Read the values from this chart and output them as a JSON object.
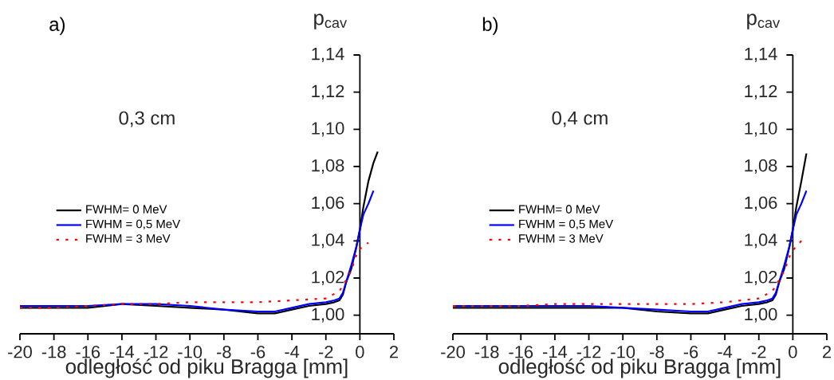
{
  "chart_data": [
    {
      "type": "line",
      "title": "a)",
      "ylabel": "p$_{cav}$",
      "xlabel": "odległość od piku Bragga [mm]",
      "annotations": [
        "0,3 cm"
      ],
      "legend": "left",
      "grid": false,
      "xlim": [
        -20,
        2
      ],
      "xticks": [
        -20,
        -18,
        -16,
        -14,
        -12,
        -10,
        -8,
        -6,
        -4,
        -2,
        0,
        2
      ],
      "ylim": [
        0.99,
        1.14
      ],
      "yticks": [
        {
          "value": 1.0,
          "label": "1,00"
        },
        {
          "value": 1.02,
          "label": "1,02"
        },
        {
          "value": 1.04,
          "label": "1,04"
        },
        {
          "value": 1.06,
          "label": "1,06"
        },
        {
          "value": 1.08,
          "label": "1,08"
        },
        {
          "value": 1.1,
          "label": "1,10"
        },
        {
          "value": 1.12,
          "label": "1,12"
        },
        {
          "value": 1.14,
          "label": "1,14"
        }
      ],
      "series": [
        {
          "name": "FWHM= 0 MeV",
          "color": "#000000",
          "line_style": "solid",
          "x": [
            -20,
            -18,
            -16,
            -14,
            -12,
            -10,
            -8,
            -6,
            -5,
            -4,
            -3,
            -2,
            -1.5,
            -1.2,
            -1,
            -0.8,
            -0.5,
            -0.2,
            0,
            0.2,
            0.5,
            0.8,
            1.05
          ],
          "values": [
            1.004,
            1.004,
            1.004,
            1.006,
            1.005,
            1.004,
            1.003,
            1.001,
            1.001,
            1.003,
            1.005,
            1.006,
            1.007,
            1.008,
            1.011,
            1.018,
            1.025,
            1.037,
            1.046,
            1.058,
            1.072,
            1.082,
            1.088
          ]
        },
        {
          "name": "FWHM = 0,5 MeV",
          "color": "#0000ff",
          "line_style": "solid",
          "x": [
            -20,
            -18,
            -16,
            -14,
            -12,
            -10,
            -8,
            -6,
            -5,
            -4,
            -3,
            -2,
            -1.5,
            -1.2,
            -1,
            -0.8,
            -0.5,
            -0.2,
            0,
            0.2,
            0.5,
            0.8
          ],
          "values": [
            1.005,
            1.005,
            1.005,
            1.006,
            1.006,
            1.005,
            1.003,
            1.002,
            1.002,
            1.004,
            1.006,
            1.007,
            1.008,
            1.009,
            1.012,
            1.018,
            1.027,
            1.037,
            1.046,
            1.054,
            1.06,
            1.067
          ]
        },
        {
          "name": "FWHM = 3 MeV",
          "color": "#ff0000",
          "line_style": "dotted",
          "x": [
            -20,
            -18,
            -16,
            -14,
            -12,
            -10,
            -8,
            -6,
            -4,
            -2,
            -1.2,
            -0.8,
            -0.5,
            -0.3,
            -0.1,
            0.5
          ],
          "values": [
            1.004,
            1.004,
            1.005,
            1.006,
            1.006,
            1.007,
            1.007,
            1.007,
            1.008,
            1.009,
            1.013,
            1.019,
            1.024,
            1.03,
            1.035,
            1.039
          ]
        }
      ]
    },
    {
      "type": "line",
      "title": "b)",
      "ylabel": "p$_{cav}$",
      "xlabel": "odległość od piku Bragga [mm]",
      "annotations": [
        "0,4 cm"
      ],
      "legend": "left",
      "grid": false,
      "xlim": [
        -20,
        2
      ],
      "xticks": [
        -20,
        -18,
        -16,
        -14,
        -12,
        -10,
        -8,
        -6,
        -4,
        -2,
        0,
        2
      ],
      "ylim": [
        0.99,
        1.14
      ],
      "yticks": [
        {
          "value": 1.0,
          "label": "1,00"
        },
        {
          "value": 1.02,
          "label": "1,02"
        },
        {
          "value": 1.04,
          "label": "1,04"
        },
        {
          "value": 1.06,
          "label": "1,06"
        },
        {
          "value": 1.08,
          "label": "1,08"
        },
        {
          "value": 1.1,
          "label": "1,10"
        },
        {
          "value": 1.12,
          "label": "1,12"
        },
        {
          "value": 1.14,
          "label": "1,14"
        }
      ],
      "series": [
        {
          "name": "FWHM= 0 MeV",
          "color": "#000000",
          "line_style": "solid",
          "x": [
            -20,
            -18,
            -16,
            -14,
            -12,
            -10,
            -8,
            -6,
            -5,
            -4,
            -3,
            -2,
            -1.5,
            -1.2,
            -1,
            -0.8,
            -0.5,
            -0.2,
            0,
            0.2,
            0.5,
            0.8
          ],
          "values": [
            1.004,
            1.004,
            1.004,
            1.004,
            1.004,
            1.004,
            1.002,
            1.001,
            1.001,
            1.003,
            1.005,
            1.006,
            1.007,
            1.008,
            1.011,
            1.018,
            1.025,
            1.037,
            1.046,
            1.058,
            1.072,
            1.087
          ]
        },
        {
          "name": "FWHM = 0,5 MeV",
          "color": "#0000ff",
          "line_style": "solid",
          "x": [
            -20,
            -18,
            -16,
            -14,
            -12,
            -10,
            -8,
            -6,
            -5,
            -4,
            -3,
            -2,
            -1.5,
            -1.2,
            -1,
            -0.8,
            -0.5,
            -0.2,
            0,
            0.2,
            0.5,
            0.8
          ],
          "values": [
            1.005,
            1.005,
            1.005,
            1.005,
            1.005,
            1.004,
            1.003,
            1.002,
            1.002,
            1.004,
            1.006,
            1.007,
            1.008,
            1.009,
            1.012,
            1.018,
            1.027,
            1.037,
            1.046,
            1.054,
            1.06,
            1.067
          ]
        },
        {
          "name": "FWHM = 3 MeV",
          "color": "#ff0000",
          "line_style": "dotted",
          "x": [
            -20,
            -18,
            -16,
            -14,
            -12,
            -10,
            -8,
            -6,
            -4,
            -2,
            -1.2,
            -0.8,
            -0.5,
            -0.3,
            -0.1,
            0.5
          ],
          "values": [
            1.005,
            1.005,
            1.005,
            1.006,
            1.006,
            1.006,
            1.006,
            1.006,
            1.007,
            1.009,
            1.013,
            1.019,
            1.024,
            1.029,
            1.034,
            1.04
          ]
        }
      ]
    }
  ]
}
